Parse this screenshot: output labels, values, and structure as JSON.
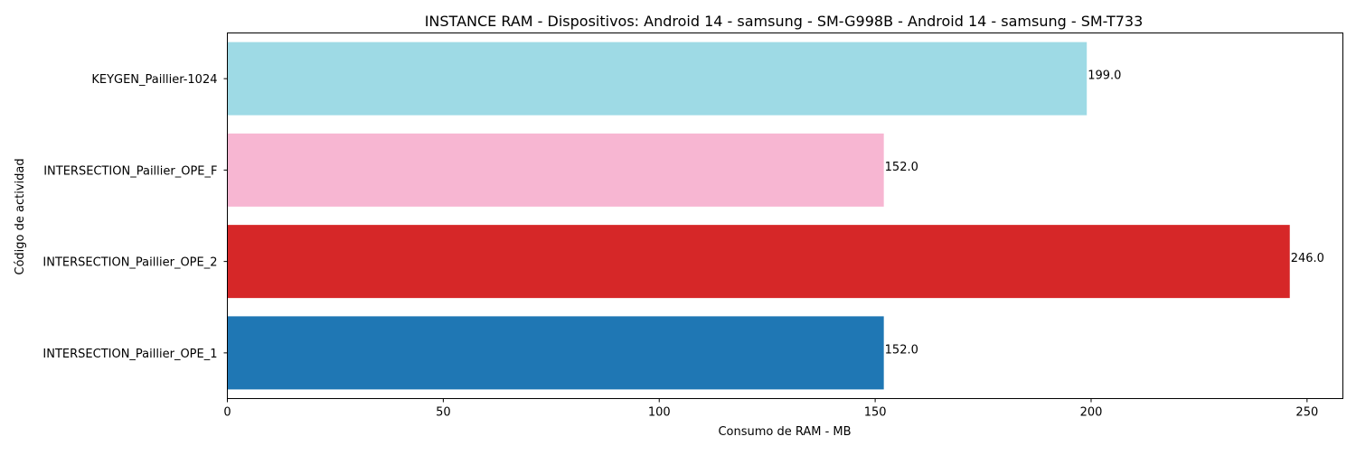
{
  "chart_data": {
    "type": "bar",
    "orientation": "horizontal",
    "title": "INSTANCE RAM - Dispositivos: Android 14 - samsung - SM-G998B - Android 14 - samsung - SM-T733",
    "xlabel": "Consumo de RAM - MB",
    "ylabel": "Código de actividad",
    "categories": [
      "INTERSECTION_Paillier_OPE_1",
      "INTERSECTION_Paillier_OPE_2",
      "INTERSECTION_Paillier_OPE_F",
      "KEYGEN_Paillier-1024"
    ],
    "values": [
      152.0,
      246.0,
      152.0,
      199.0
    ],
    "value_labels": [
      "152.0",
      "246.0",
      "152.0",
      "199.0"
    ],
    "colors": [
      "#1f77b4",
      "#d62728",
      "#f7b6d2",
      "#9edae5"
    ],
    "xlim": [
      0,
      258.3
    ],
    "xticks": [
      0,
      50,
      100,
      150,
      200,
      250
    ],
    "grid": false
  }
}
